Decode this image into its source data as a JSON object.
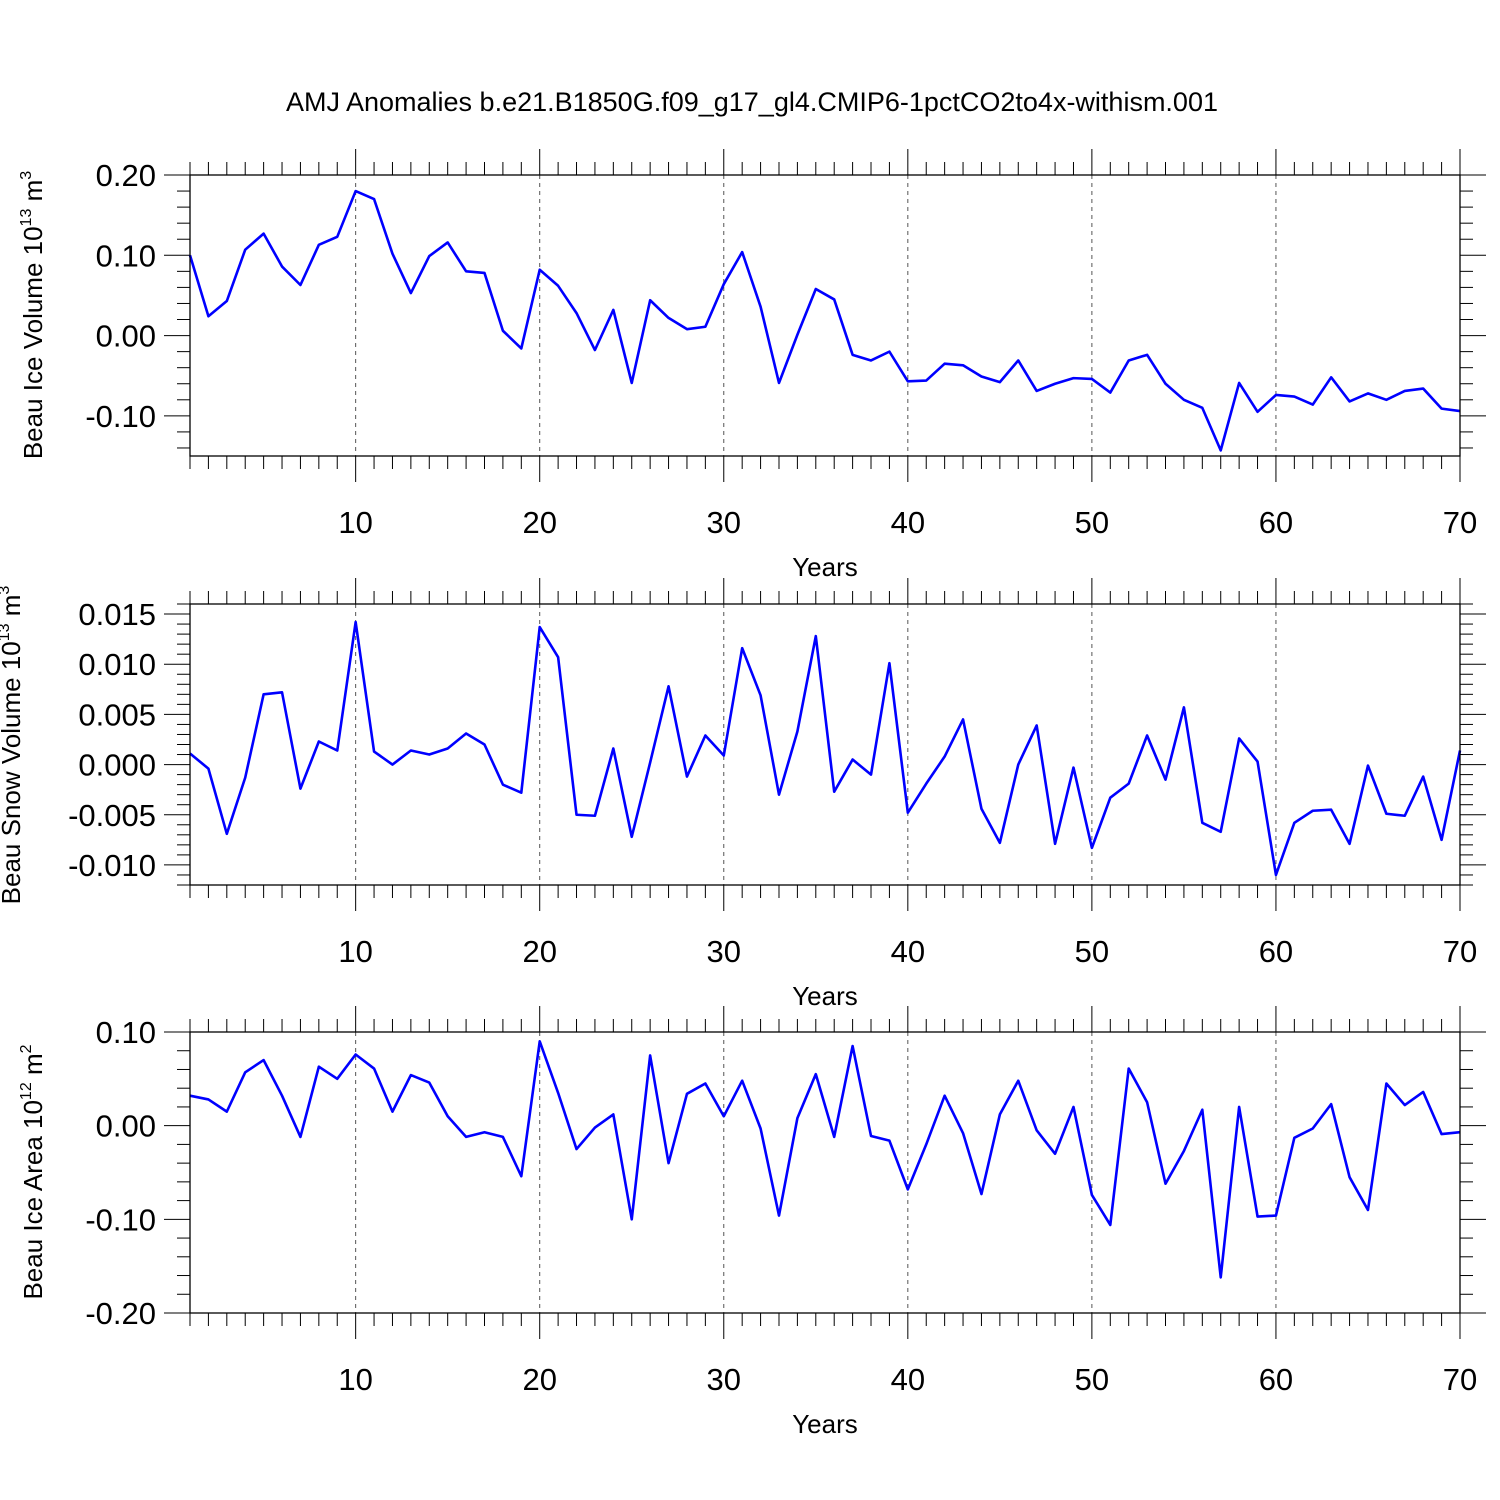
{
  "title": "AMJ Anomalies b.e21.B1850G.f09_g17_gl4.CMIP6-1pctCO2to4x-withism.001",
  "line_color": "#0000ff",
  "chart_data": [
    {
      "type": "line",
      "ylabel": "Beau Ice Volume 10",
      "ylabel_sup1": "13",
      "ylabel_mid": " m",
      "ylabel_sup2": "3",
      "xlabel": "Years",
      "xlim": [
        1,
        70
      ],
      "ylim": [
        -0.15,
        0.2
      ],
      "yticks": [
        0.2,
        0.1,
        0.0,
        -0.1
      ],
      "ytick_labels": [
        "0.20",
        "0.10",
        "0.00",
        "-0.10"
      ],
      "xticks": [
        10,
        20,
        30,
        40,
        50,
        60,
        70
      ],
      "xtick_labels": [
        "10",
        "20",
        "30",
        "40",
        "50",
        "60",
        "70"
      ],
      "grid": "vertical dashed at major x ticks",
      "series": [
        {
          "x": [
            1,
            2,
            3,
            4,
            5,
            6,
            7,
            8,
            9,
            10,
            11,
            12,
            13,
            14,
            15,
            16,
            17,
            18,
            19,
            20,
            21,
            22,
            23,
            24,
            25,
            26,
            27,
            28,
            29,
            30,
            31,
            32,
            33,
            34,
            35,
            36,
            37,
            38,
            39,
            40,
            41,
            42,
            43,
            44,
            45,
            46,
            47,
            48,
            49,
            50,
            51,
            52,
            53,
            54,
            55,
            56,
            57,
            58,
            59,
            60,
            61,
            62,
            63,
            64,
            65,
            66,
            67,
            68,
            69,
            70
          ],
          "values": [
            0.1,
            0.024,
            0.043,
            0.107,
            0.127,
            0.086,
            0.063,
            0.113,
            0.123,
            0.18,
            0.17,
            0.102,
            0.053,
            0.099,
            0.116,
            0.08,
            0.078,
            0.006,
            -0.016,
            0.082,
            0.062,
            0.028,
            -0.018,
            0.032,
            -0.059,
            0.044,
            0.022,
            0.008,
            0.011,
            0.064,
            0.104,
            0.036,
            -0.059,
            0.001,
            0.058,
            0.045,
            -0.024,
            -0.031,
            -0.02,
            -0.057,
            -0.056,
            -0.035,
            -0.037,
            -0.051,
            -0.058,
            -0.031,
            -0.069,
            -0.06,
            -0.053,
            -0.054,
            -0.071,
            -0.031,
            -0.024,
            -0.06,
            -0.08,
            -0.09,
            -0.143,
            -0.059,
            -0.095,
            -0.074,
            -0.076,
            -0.086,
            -0.052,
            -0.082,
            -0.072,
            -0.08,
            -0.069,
            -0.066,
            -0.091,
            -0.094
          ]
        }
      ]
    },
    {
      "type": "line",
      "ylabel": "Beau Snow Volume 10",
      "ylabel_sup1": "13",
      "ylabel_mid": " m",
      "ylabel_sup2": "3",
      "xlabel": "Years",
      "xlim": [
        1,
        70
      ],
      "ylim": [
        -0.012,
        0.016
      ],
      "yticks": [
        0.015,
        0.01,
        0.005,
        0.0,
        -0.005,
        -0.01
      ],
      "ytick_labels": [
        "0.015",
        "0.010",
        "0.005",
        "0.000",
        "-0.005",
        "-0.010"
      ],
      "xticks": [
        10,
        20,
        30,
        40,
        50,
        60,
        70
      ],
      "xtick_labels": [
        "10",
        "20",
        "30",
        "40",
        "50",
        "60",
        "70"
      ],
      "grid": "vertical dashed at major x ticks",
      "series": [
        {
          "x": [
            1,
            2,
            3,
            4,
            5,
            6,
            7,
            8,
            9,
            10,
            11,
            12,
            13,
            14,
            15,
            16,
            17,
            18,
            19,
            20,
            21,
            22,
            23,
            24,
            25,
            26,
            27,
            28,
            29,
            30,
            31,
            32,
            33,
            34,
            35,
            36,
            37,
            38,
            39,
            40,
            41,
            42,
            43,
            44,
            45,
            46,
            47,
            48,
            49,
            50,
            51,
            52,
            53,
            54,
            55,
            56,
            57,
            58,
            59,
            60,
            61,
            62,
            63,
            64,
            65,
            66,
            67,
            68,
            69,
            70
          ],
          "values": [
            0.0011,
            -0.0004,
            -0.0069,
            -0.0013,
            0.007,
            0.0072,
            -0.0024,
            0.0023,
            0.0014,
            0.0142,
            0.0013,
            0.0,
            0.0014,
            0.001,
            0.0016,
            0.0031,
            0.002,
            -0.002,
            -0.0028,
            0.0137,
            0.0107,
            -0.005,
            -0.0051,
            0.0016,
            -0.0072,
            0.0002,
            0.0078,
            -0.0012,
            0.0029,
            0.0009,
            0.0116,
            0.0069,
            -0.003,
            0.0033,
            0.0128,
            -0.0027,
            0.0005,
            -0.001,
            0.0101,
            -0.0048,
            -0.0019,
            0.0008,
            0.0045,
            -0.0044,
            -0.0078,
            0.0,
            0.0039,
            -0.0079,
            -0.0003,
            -0.0083,
            -0.0033,
            -0.0019,
            0.0029,
            -0.0015,
            0.0057,
            -0.0058,
            -0.0067,
            0.0026,
            0.0003,
            -0.011,
            -0.0058,
            -0.0046,
            -0.0045,
            -0.0079,
            -0.0001,
            -0.0049,
            -0.0051,
            -0.0012,
            -0.0075,
            0.0014
          ]
        }
      ]
    },
    {
      "type": "line",
      "ylabel": "Beau Ice Area 10",
      "ylabel_sup1": "12",
      "ylabel_mid": " m",
      "ylabel_sup2": "2",
      "xlabel": "Years",
      "xlim": [
        1,
        70
      ],
      "ylim": [
        -0.2,
        0.1
      ],
      "yticks": [
        0.1,
        0.0,
        -0.1,
        -0.2
      ],
      "ytick_labels": [
        "0.10",
        "0.00",
        "-0.10",
        "-0.20"
      ],
      "xticks": [
        10,
        20,
        30,
        40,
        50,
        60,
        70
      ],
      "xtick_labels": [
        "10",
        "20",
        "30",
        "40",
        "50",
        "60",
        "70"
      ],
      "grid": "vertical dashed at major x ticks",
      "series": [
        {
          "x": [
            1,
            2,
            3,
            4,
            5,
            6,
            7,
            8,
            9,
            10,
            11,
            12,
            13,
            14,
            15,
            16,
            17,
            18,
            19,
            20,
            21,
            22,
            23,
            24,
            25,
            26,
            27,
            28,
            29,
            30,
            31,
            32,
            33,
            34,
            35,
            36,
            37,
            38,
            39,
            40,
            41,
            42,
            43,
            44,
            45,
            46,
            47,
            48,
            49,
            50,
            51,
            52,
            53,
            54,
            55,
            56,
            57,
            58,
            59,
            60,
            61,
            62,
            63,
            64,
            65,
            66,
            67,
            68,
            69,
            70
          ],
          "values": [
            0.032,
            0.028,
            0.015,
            0.057,
            0.07,
            0.032,
            -0.012,
            0.063,
            0.05,
            0.076,
            0.061,
            0.015,
            0.054,
            0.046,
            0.01,
            -0.012,
            -0.007,
            -0.012,
            -0.054,
            0.09,
            0.035,
            -0.025,
            -0.002,
            0.012,
            -0.1,
            0.075,
            -0.04,
            0.034,
            0.045,
            0.01,
            0.048,
            -0.003,
            -0.096,
            0.008,
            0.055,
            -0.012,
            0.085,
            -0.011,
            -0.016,
            -0.068,
            -0.02,
            0.032,
            -0.008,
            -0.073,
            0.012,
            0.048,
            -0.005,
            -0.03,
            0.02,
            -0.074,
            -0.106,
            0.061,
            0.025,
            -0.062,
            -0.027,
            0.017,
            -0.162,
            0.02,
            -0.097,
            -0.096,
            -0.013,
            -0.003,
            0.023,
            -0.055,
            -0.09,
            0.045,
            0.022,
            0.036,
            -0.009,
            -0.007
          ]
        }
      ]
    }
  ]
}
